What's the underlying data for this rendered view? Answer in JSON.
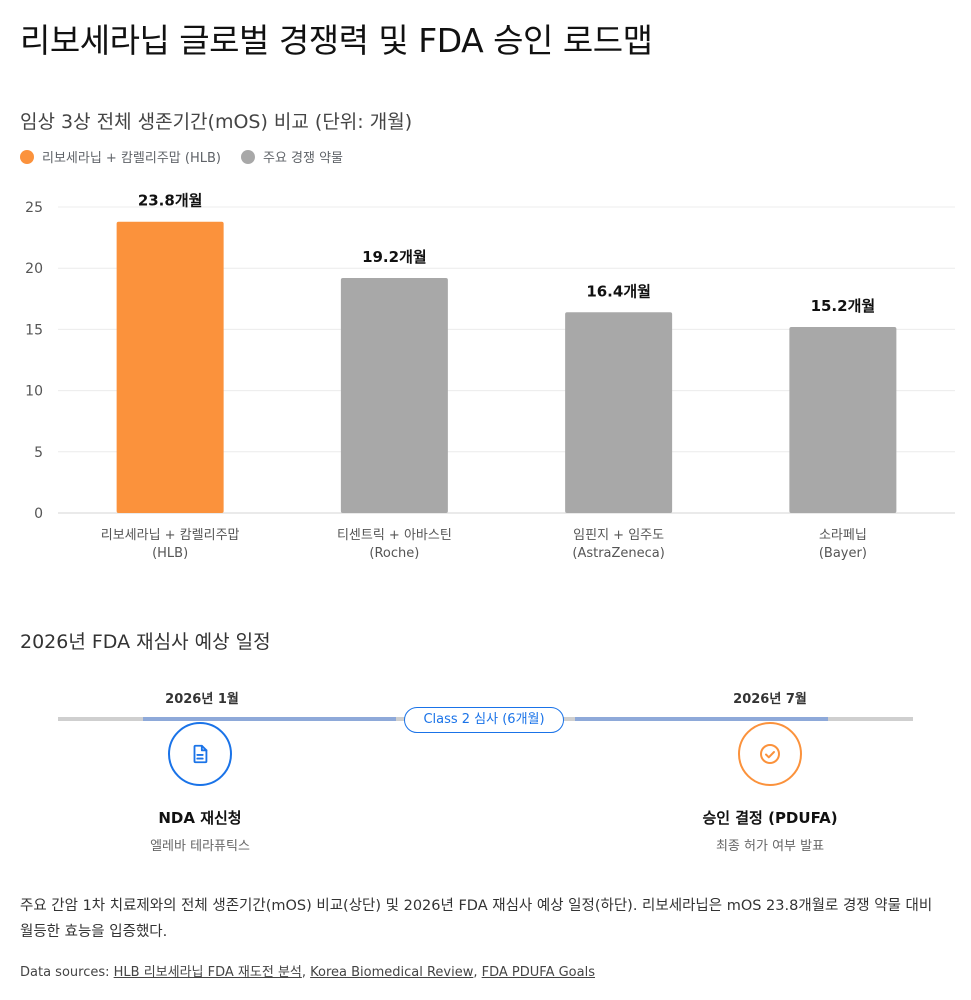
{
  "page": {
    "title": "리보세라닙 글로벌 경쟁력 및 FDA 승인 로드맵"
  },
  "chart_data": {
    "type": "bar",
    "title": "임상 3상 전체 생존기간(mOS) 비교 (단위: 개월)",
    "categories": [
      [
        "리보세라닙 + 캄렐리주맙",
        "(HLB)"
      ],
      [
        "티센트릭 + 아바스틴",
        "(Roche)"
      ],
      [
        "임핀지 + 임주도",
        "(AstraZeneca)"
      ],
      [
        "소라페닙",
        "(Bayer)"
      ]
    ],
    "values": [
      23.8,
      19.2,
      16.4,
      15.2
    ],
    "data_labels": [
      "23.8개월",
      "19.2개월",
      "16.4개월",
      "15.2개월"
    ],
    "bar_groups": [
      0,
      1,
      1,
      1
    ],
    "ylim": [
      0,
      25
    ],
    "yticks": [
      0,
      5,
      10,
      15,
      20,
      25
    ],
    "grid": true,
    "legend_position": "top-left",
    "legend": [
      {
        "label": "리보세라닙 + 캄렐리주맙 (HLB)",
        "color": "#fb923c"
      },
      {
        "label": "주요 경쟁 약물",
        "color": "#a8a8a8"
      }
    ]
  },
  "timeline": {
    "title": "2026년 FDA 재심사 예상 일정",
    "start_date": "2026년 1월",
    "end_date": "2026년 7월",
    "period_label": "Class 2 심사 (6개월)",
    "start_label": "NDA 재신청",
    "start_sub": "엘레바 테라퓨틱스",
    "start_icon": "document-icon",
    "end_label": "승인 결정 (PDUFA)",
    "end_sub": "최종 허가 여부 발표",
    "end_icon": "check-circle-icon",
    "colors": {
      "start": "#1a73e8",
      "end": "#fb923c",
      "line": "#8ea9d9"
    }
  },
  "caption": "주요 간암 1차 치료제와의 전체 생존기간(mOS) 비교(상단) 및 2026년 FDA 재심사 예상 일정(하단). 리보세라닙은 mOS 23.8개월로 경쟁 약물 대비 월등한 효능을 입증했다.",
  "sources": {
    "prefix": "Data sources: ",
    "links": [
      "HLB 리보세라닙 FDA 재도전 분석",
      "Korea Biomedical Review",
      "FDA PDUFA Goals"
    ]
  }
}
